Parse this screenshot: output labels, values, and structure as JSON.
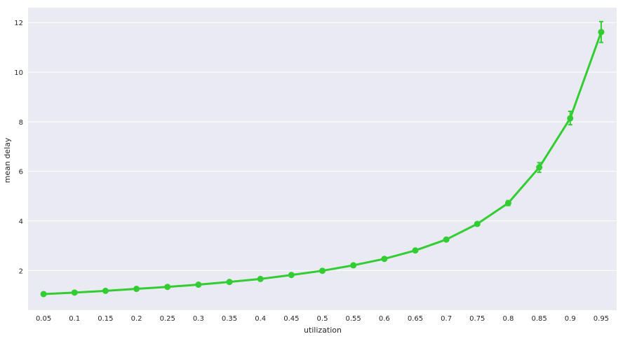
{
  "chart_data": {
    "type": "line",
    "title": "",
    "xlabel": "utilization",
    "ylabel": "mean delay",
    "categories": [
      "0.05",
      "0.1",
      "0.15",
      "0.2",
      "0.25",
      "0.3",
      "0.35",
      "0.4",
      "0.45",
      "0.5",
      "0.55",
      "0.6",
      "0.65",
      "0.7",
      "0.75",
      "0.8",
      "0.85",
      "0.9",
      "0.95"
    ],
    "series": [
      {
        "values": [
          1.05,
          1.11,
          1.18,
          1.26,
          1.34,
          1.43,
          1.54,
          1.66,
          1.82,
          1.99,
          2.21,
          2.47,
          2.81,
          3.25,
          3.88,
          4.72,
          6.16,
          8.14,
          11.62
        ],
        "error_low": [
          1.05,
          1.11,
          1.18,
          1.26,
          1.34,
          1.43,
          1.53,
          1.65,
          1.8,
          1.97,
          2.18,
          2.44,
          2.77,
          3.2,
          3.84,
          4.62,
          5.96,
          7.88,
          11.2
        ],
        "error_high": [
          1.06,
          1.12,
          1.19,
          1.27,
          1.35,
          1.45,
          1.56,
          1.68,
          1.85,
          2.02,
          2.25,
          2.51,
          2.86,
          3.3,
          3.93,
          4.82,
          6.35,
          8.42,
          12.04
        ]
      }
    ],
    "yticks": [
      2,
      4,
      6,
      8,
      10,
      12
    ],
    "ylim": [
      0.4,
      12.6
    ],
    "grid": true,
    "legend": "none",
    "colors": {
      "line": "#32cd32",
      "background": "#eaeaf2",
      "grid": "#ffffff"
    }
  }
}
